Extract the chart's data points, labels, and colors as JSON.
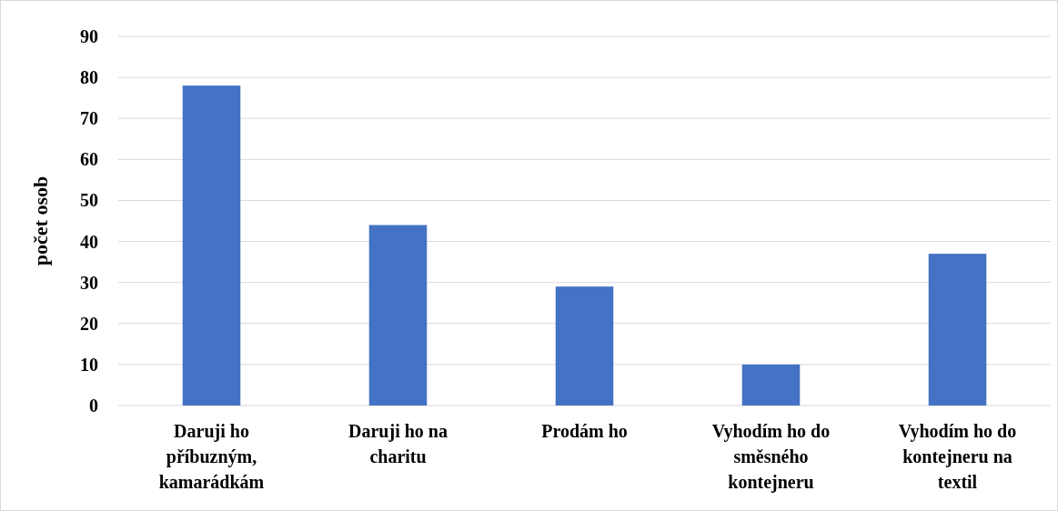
{
  "chart_data": {
    "type": "bar",
    "ylabel": "počet osob",
    "categories": [
      "Daruji ho příbuzným, kamarádkám",
      "Daruji ho na charitu",
      "Prodám ho",
      "Vyhodím ho do směsného kontejneru",
      "Vyhodím ho do kontejneru na textil"
    ],
    "values": [
      78,
      44,
      29,
      10,
      37
    ],
    "color": "#4472c4",
    "ylim": [
      0,
      90
    ],
    "yticks": [
      0,
      10,
      20,
      30,
      40,
      50,
      60,
      70,
      80,
      90
    ],
    "grid": "y"
  }
}
